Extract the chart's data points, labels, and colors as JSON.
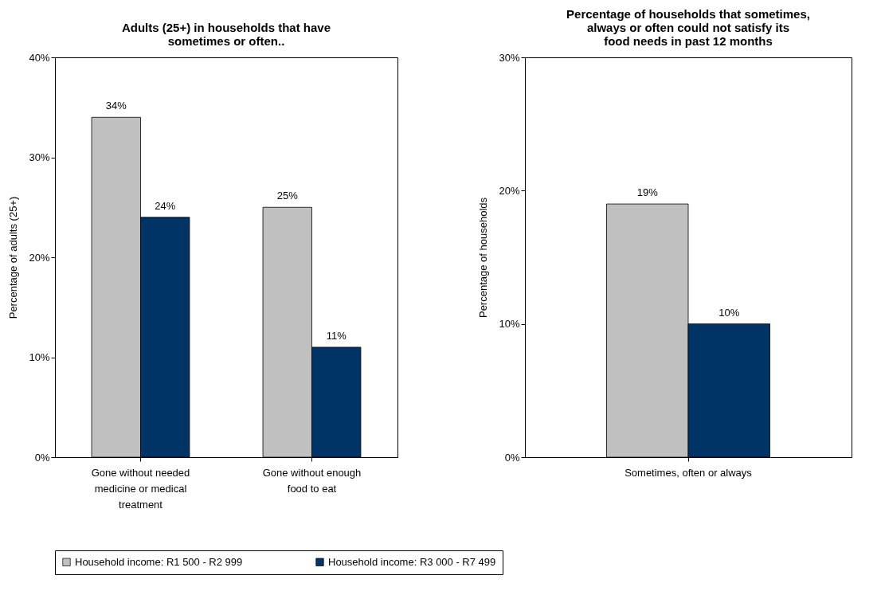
{
  "chart_data": [
    {
      "type": "bar",
      "title": "Adults (25+) in households that have sometimes or often..",
      "ylabel": "Percentage of adults (25+)",
      "categories": [
        "Gone without needed medicine or medical treatment",
        "Gone without enough food to eat"
      ],
      "series": [
        {
          "name": "Household income: R1 500 - R2 999",
          "color": "#c0c0c0",
          "values": [
            34,
            25
          ],
          "value_labels": [
            "34%",
            "25%"
          ]
        },
        {
          "name": "Household income: R3 000 - R7 499",
          "color": "#003366",
          "values": [
            24,
            11
          ],
          "value_labels": [
            "24%",
            "11%"
          ]
        }
      ],
      "ylim": [
        0,
        40
      ],
      "yticks": [
        {
          "value": 0,
          "label": "0%"
        },
        {
          "value": 10,
          "label": "10%"
        },
        {
          "value": 20,
          "label": "20%"
        },
        {
          "value": 30,
          "label": "30%"
        },
        {
          "value": 40,
          "label": "40%"
        }
      ],
      "grid": false,
      "legend": "bottom"
    },
    {
      "type": "bar",
      "title": "Percentage of households that sometimes, always or often could not satisfy its food needs in past 12 months",
      "ylabel": "Percentage of households",
      "categories": [
        "Sometimes, often or always"
      ],
      "series": [
        {
          "name": "Household income: R1 500 - R2 999",
          "color": "#c0c0c0",
          "values": [
            19
          ],
          "value_labels": [
            "19%"
          ]
        },
        {
          "name": "Household income: R3 000 - R7 499",
          "color": "#003366",
          "values": [
            10
          ],
          "value_labels": [
            "10%"
          ]
        }
      ],
      "ylim": [
        0,
        30
      ],
      "yticks": [
        {
          "value": 0,
          "label": "0%"
        },
        {
          "value": 10,
          "label": "10%"
        },
        {
          "value": 20,
          "label": "20%"
        },
        {
          "value": 30,
          "label": "30%"
        }
      ],
      "grid": false,
      "legend": false
    }
  ]
}
